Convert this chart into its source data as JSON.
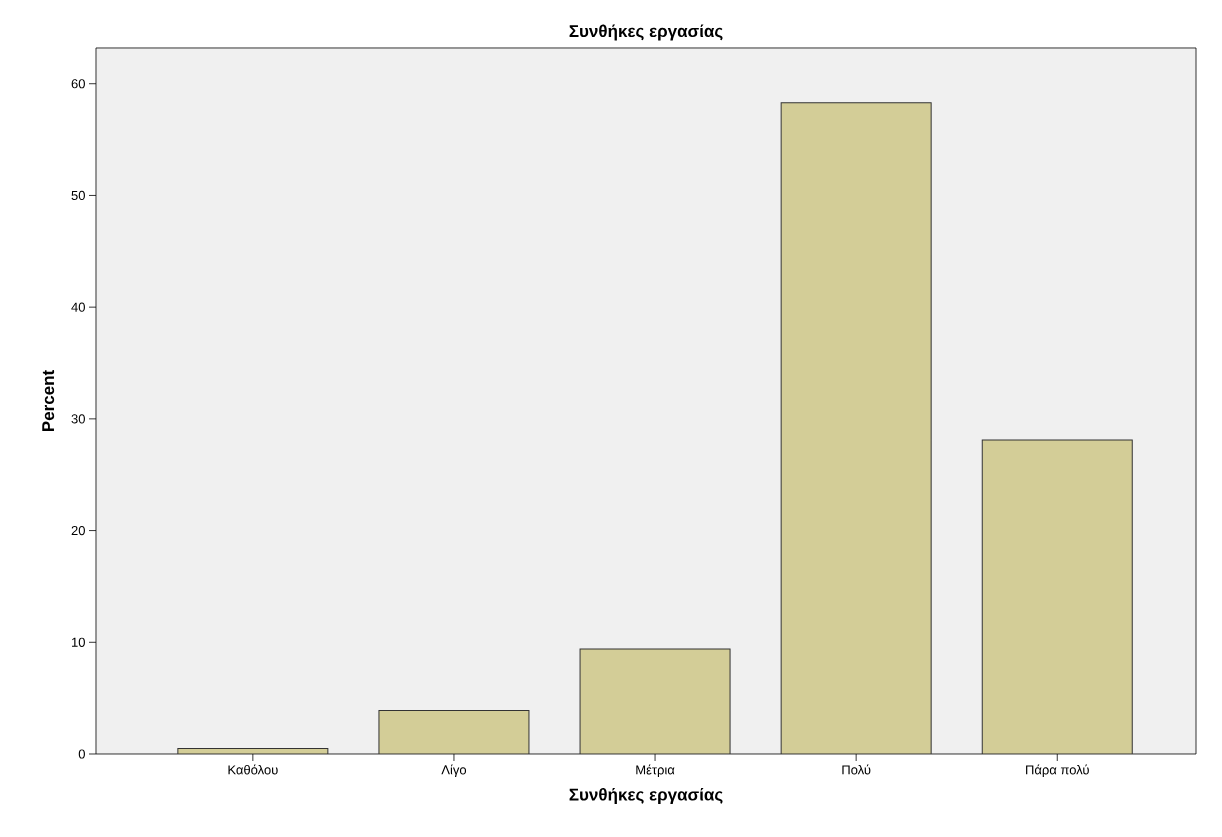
{
  "chart_data": {
    "type": "bar",
    "title": "Συνθήκες εργασίας",
    "xlabel": "Συνθήκες εργασίας",
    "ylabel": "Percent",
    "categories": [
      "Καθόλου",
      "Λίγο",
      "Μέτρια",
      "Πολύ",
      "Πάρα πολύ"
    ],
    "values": [
      0.5,
      3.9,
      9.4,
      58.3,
      28.1
    ],
    "color": "#d3cd97",
    "ylim": [
      0,
      63.2
    ],
    "yticks": [
      0,
      10,
      20,
      30,
      40,
      50,
      60
    ],
    "grid": false
  }
}
